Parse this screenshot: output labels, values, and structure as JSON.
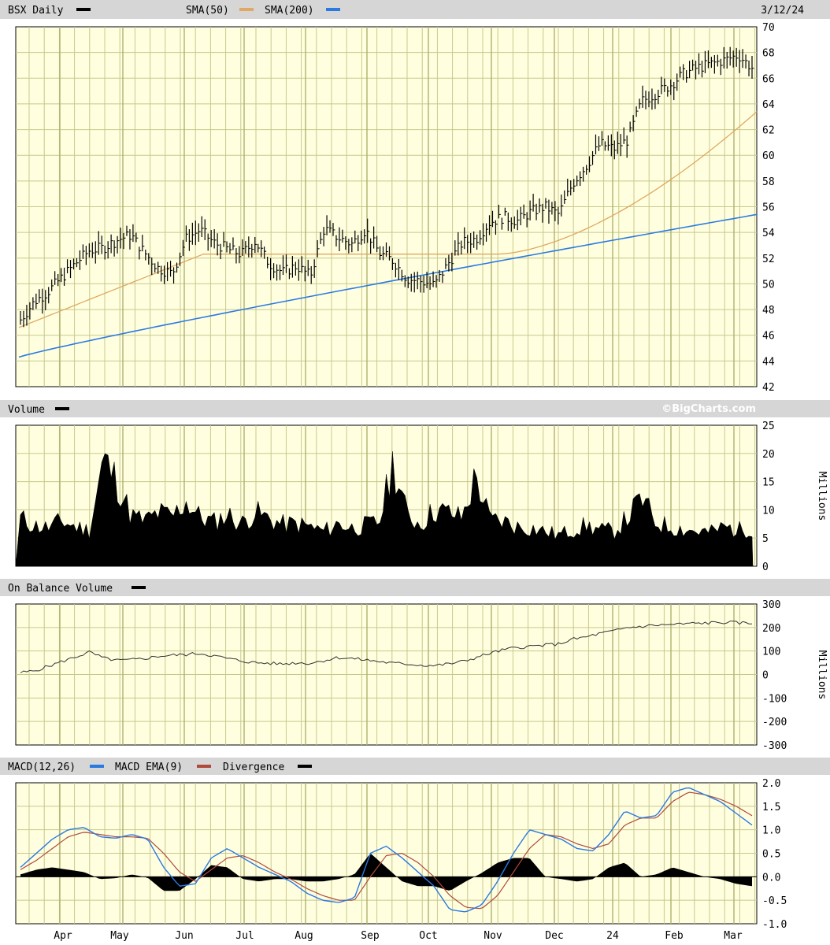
{
  "chart_data": {
    "type": "financial",
    "date_label": "3/12/24",
    "watermark": "©BigCharts.com",
    "x_months": [
      "Apr",
      "May",
      "Jun",
      "Jul",
      "Aug",
      "Sep",
      "Oct",
      "Nov",
      "Dec",
      "24",
      "Feb",
      "Mar"
    ],
    "price": {
      "title": "BSX Daily",
      "legend": [
        {
          "name": "SMA(50)",
          "color": "#e0a860"
        },
        {
          "name": "SMA(200)",
          "color": "#2a7ae2"
        }
      ],
      "y_ticks": [
        "42",
        "44",
        "46",
        "48",
        "50",
        "52",
        "54",
        "56",
        "58",
        "60",
        "62",
        "64",
        "66",
        "68",
        "70"
      ],
      "ylim": [
        42,
        70
      ],
      "closes_weekly": [
        47.2,
        48.6,
        49.4,
        50.5,
        51.6,
        52.6,
        52.8,
        53.4,
        53.8,
        52.4,
        51.2,
        50.8,
        53.5,
        54.2,
        53.2,
        52.7,
        52.3,
        53.3,
        51.6,
        50.9,
        51.4,
        50.6,
        54.3,
        53.6,
        53.1,
        54.2,
        52.4,
        51.8,
        50.4,
        50.2,
        49.9,
        51.6,
        53.2,
        53.5,
        54.8,
        55.2,
        54.9,
        55.6,
        56.0,
        55.4,
        57.8,
        59.2,
        60.9,
        60.5,
        61.2,
        64.2,
        64.8,
        65.4,
        66.3,
        66.8,
        67.1,
        67.4,
        67.8,
        66.8
      ],
      "sma50_start": 46.6,
      "sma50_end": 63.4,
      "sma200_start": 44.3,
      "sma200_end": 55.4
    },
    "volume": {
      "title": "Volume",
      "y_ticks": [
        "0",
        "5",
        "10",
        "15",
        "20",
        "25"
      ],
      "ylabel": "Millions",
      "ylim": [
        0,
        25
      ],
      "weekly_millions": [
        8.5,
        7.2,
        6.8,
        8.0,
        7.0,
        6.4,
        19.0,
        15.0,
        9.0,
        8.0,
        9.5,
        8.8,
        11.5,
        8.7,
        7.8,
        9.2,
        7.5,
        9.6,
        8.4,
        7.4,
        7.5,
        7.0,
        6.2,
        7.6,
        6.8,
        7.2,
        7.8,
        18.5,
        9.0,
        7.5,
        10.0,
        9.5,
        8.6,
        16.0,
        8.2,
        8.0,
        7.0,
        6.8,
        6.2,
        5.5,
        6.5,
        7.2,
        6.4,
        6.2,
        8.6,
        12.0,
        7.8,
        7.0,
        6.6,
        6.2,
        6.0,
        7.0,
        6.4,
        6.8
      ]
    },
    "obv": {
      "title": "On Balance Volume",
      "y_ticks": [
        "-300",
        "-200",
        "-100",
        "0",
        "100",
        "200",
        "300"
      ],
      "ylabel": "Millions",
      "ylim": [
        -300,
        300
      ],
      "weekly_millions": [
        8,
        15,
        35,
        55,
        75,
        95,
        70,
        60,
        62,
        68,
        78,
        82,
        85,
        90,
        80,
        68,
        58,
        50,
        48,
        45,
        50,
        48,
        60,
        72,
        68,
        62,
        55,
        48,
        45,
        40,
        38,
        45,
        55,
        72,
        90,
        105,
        115,
        120,
        125,
        130,
        150,
        160,
        175,
        185,
        200,
        205,
        210,
        212,
        215,
        218,
        220,
        222,
        220,
        218
      ]
    },
    "macd": {
      "title": "MACD(12,26)",
      "legend": [
        {
          "name": "MACD(12,26)",
          "color": "#2a7ae2"
        },
        {
          "name": "MACD EMA(9)",
          "color": "#b04a3c"
        },
        {
          "name": "Divergence",
          "color": "#000000"
        }
      ],
      "y_ticks": [
        "-1.0",
        "-0.5",
        "0.0",
        "0.5",
        "1.0",
        "1.5",
        "2.0"
      ],
      "ylim": [
        -1.0,
        2.0
      ],
      "macd_weekly": [
        0.2,
        0.5,
        0.8,
        1.0,
        1.05,
        0.85,
        0.82,
        0.9,
        0.8,
        0.2,
        -0.2,
        -0.15,
        0.4,
        0.6,
        0.4,
        0.2,
        0.05,
        -0.1,
        -0.35,
        -0.5,
        -0.55,
        -0.45,
        0.5,
        0.65,
        0.4,
        0.1,
        -0.2,
        -0.7,
        -0.75,
        -0.6,
        -0.1,
        0.5,
        1.0,
        0.9,
        0.8,
        0.6,
        0.55,
        0.9,
        1.4,
        1.25,
        1.3,
        1.8,
        1.9,
        1.75,
        1.6,
        1.35,
        1.1
      ],
      "signal_weekly": [
        0.15,
        0.35,
        0.6,
        0.85,
        0.95,
        0.9,
        0.85,
        0.85,
        0.82,
        0.5,
        0.1,
        -0.1,
        0.15,
        0.4,
        0.45,
        0.3,
        0.1,
        -0.05,
        -0.25,
        -0.4,
        -0.5,
        -0.5,
        0.0,
        0.45,
        0.5,
        0.3,
        0.0,
        -0.4,
        -0.65,
        -0.68,
        -0.4,
        0.1,
        0.6,
        0.9,
        0.85,
        0.7,
        0.6,
        0.7,
        1.1,
        1.25,
        1.25,
        1.6,
        1.8,
        1.75,
        1.65,
        1.5,
        1.3
      ]
    }
  }
}
